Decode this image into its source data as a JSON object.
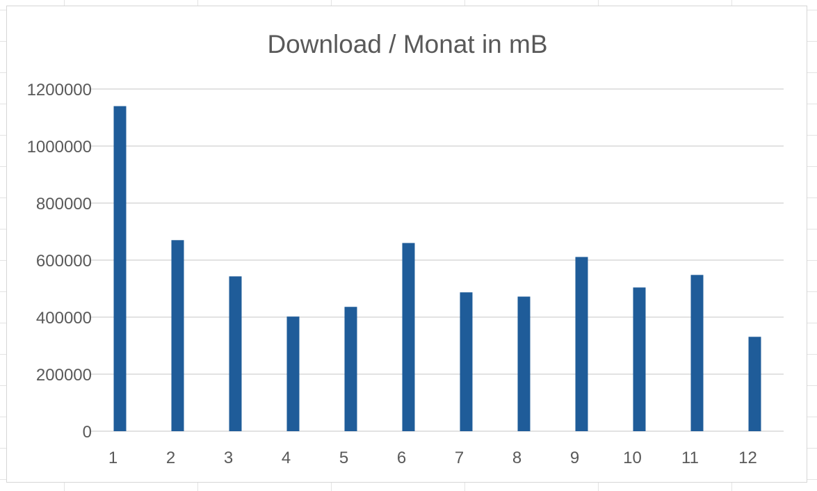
{
  "chart_data": {
    "type": "bar",
    "title": "Download / Monat in mB",
    "xlabel": "",
    "ylabel": "",
    "categories": [
      "1",
      "2",
      "3",
      "4",
      "5",
      "6",
      "7",
      "8",
      "9",
      "10",
      "11",
      "12"
    ],
    "values": [
      1140000,
      670000,
      543000,
      402000,
      436000,
      660000,
      487000,
      472000,
      611000,
      504000,
      548000,
      331000
    ],
    "ylim": [
      0,
      1200000
    ],
    "yticks": [
      "0",
      "200000",
      "400000",
      "600000",
      "800000",
      "1000000",
      "1200000"
    ],
    "grid": true,
    "legend": "none",
    "bar_color": "#1f5c99",
    "grid_color": "#d9d9d9"
  }
}
